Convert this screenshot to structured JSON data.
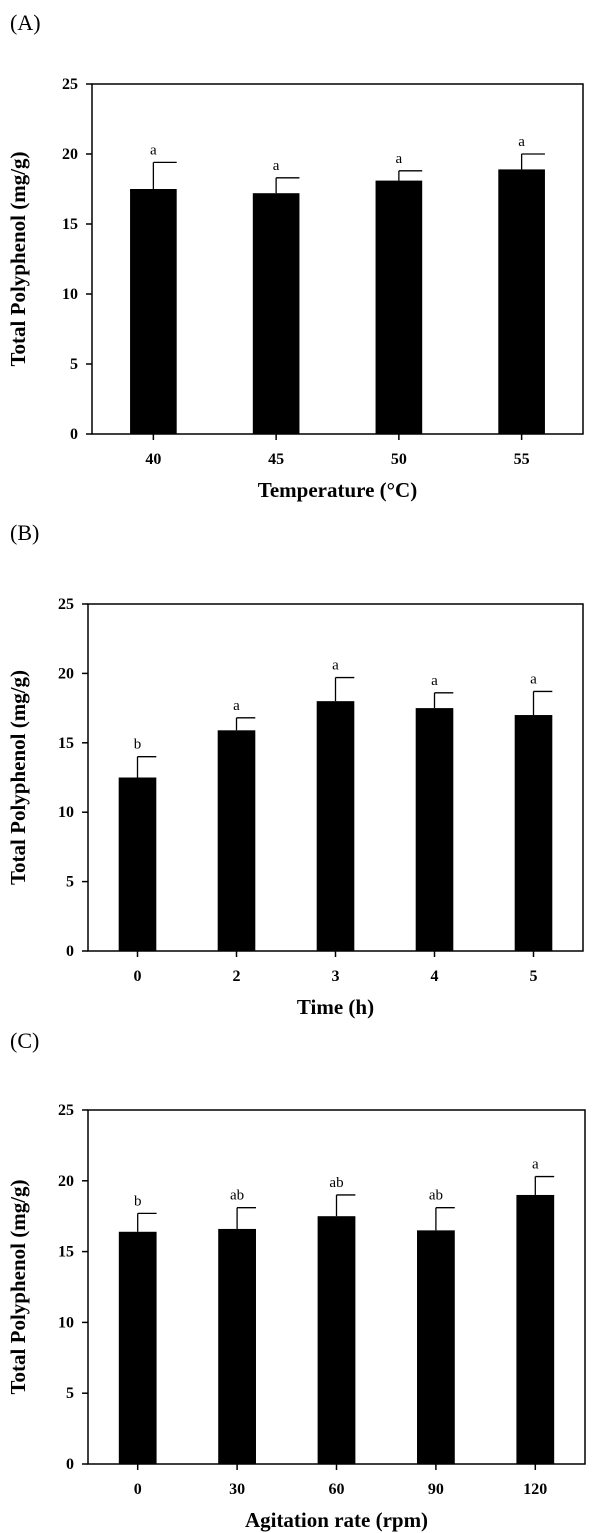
{
  "chart_data": [
    {
      "panel": "(A)",
      "type": "bar",
      "categories": [
        "40",
        "45",
        "50",
        "55"
      ],
      "values": [
        17.5,
        17.2,
        18.1,
        18.9
      ],
      "errors": [
        1.9,
        1.1,
        0.7,
        1.1
      ],
      "significance": [
        "a",
        "a",
        "a",
        "a"
      ],
      "xlabel": "Temperature (°C)",
      "ylabel": "Total Polyphenol  (mg/g)",
      "ylim": [
        0,
        25
      ],
      "yticks": [
        0,
        5,
        10,
        15,
        20,
        25
      ],
      "grid": false,
      "bar_color": "#000000"
    },
    {
      "panel": "(B)",
      "type": "bar",
      "categories": [
        "0",
        "2",
        "3",
        "4",
        "5"
      ],
      "values": [
        12.5,
        15.9,
        18.0,
        17.5,
        17.0
      ],
      "errors": [
        1.5,
        0.9,
        1.7,
        1.1,
        1.7
      ],
      "significance": [
        "b",
        "a",
        "a",
        "a",
        "a"
      ],
      "xlabel": "Time (h)",
      "ylabel": "Total Polyphenol  (mg/g)",
      "ylim": [
        0,
        25
      ],
      "yticks": [
        0,
        5,
        10,
        15,
        20,
        25
      ],
      "grid": false,
      "bar_color": "#000000"
    },
    {
      "panel": "(C)",
      "type": "bar",
      "categories": [
        "0",
        "30",
        "60",
        "90",
        "120"
      ],
      "values": [
        16.4,
        16.6,
        17.5,
        16.5,
        19.0
      ],
      "errors": [
        1.3,
        1.5,
        1.5,
        1.6,
        1.3
      ],
      "significance": [
        "b",
        "ab",
        "ab",
        "ab",
        "a"
      ],
      "xlabel": "Agitation rate  (rpm)",
      "ylabel": "Total Polyphenol  (mg/g)",
      "ylim": [
        0,
        25
      ],
      "yticks": [
        0,
        5,
        10,
        15,
        20,
        25
      ],
      "grid": false,
      "bar_color": "#000000"
    }
  ]
}
